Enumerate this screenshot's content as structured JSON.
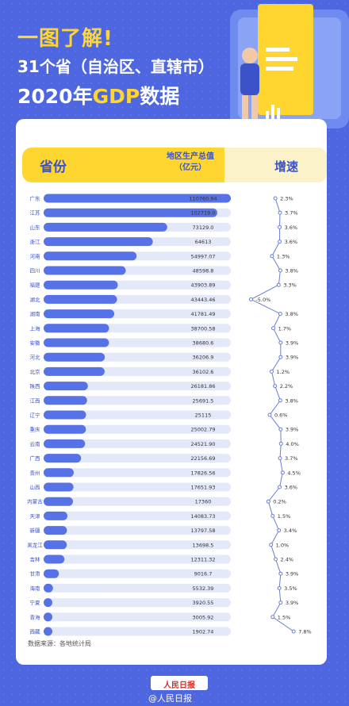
{
  "headline": {
    "line1": "一图了解!",
    "line2": "31个省（自治区、直辖市）",
    "line3_year": "2020年",
    "line3_gdp": "GDP",
    "line3_tail": "数据"
  },
  "table_header": {
    "province": "省份",
    "gdp": "地区生产总值",
    "gdp_unit": "（亿元）",
    "growth": "增速"
  },
  "source_note": "数据来源：各地统计局",
  "footer": {
    "logo": "人民日报",
    "weibo": "@人民日报"
  },
  "colors": {
    "background": "#4e67e0",
    "bar": "#5771e6",
    "track": "#e4e9fa",
    "line": "#6b7fd3",
    "accent": "#ffd530"
  },
  "chart_data": {
    "type": "bar",
    "categories": [
      "广东",
      "江苏",
      "山东",
      "浙江",
      "河南",
      "四川",
      "福建",
      "湖北",
      "湖南",
      "上海",
      "安徽",
      "河北",
      "北京",
      "陕西",
      "江西",
      "辽宁",
      "重庆",
      "云南",
      "广西",
      "贵州",
      "山西",
      "内蒙古",
      "天津",
      "新疆",
      "黑龙江",
      "吉林",
      "甘肃",
      "海南",
      "宁夏",
      "青海",
      "西藏"
    ],
    "values": [
      110760.94,
      102719.0,
      73129.0,
      64613,
      54997.07,
      48598.8,
      43903.89,
      43443.46,
      41781.49,
      38700.58,
      38680.6,
      36206.9,
      36102.6,
      26181.86,
      25691.5,
      25115,
      25002.79,
      24521.9,
      22156.69,
      17826.56,
      17651.93,
      17360,
      14083.73,
      13797.58,
      13698.5,
      12311.32,
      9016.7,
      5532.39,
      3920.55,
      3005.92,
      1902.74
    ],
    "value_labels": [
      "110760.94",
      "102719.0",
      "73129.0",
      "64613",
      "54997.07",
      "48598.8",
      "43903.89",
      "43443.46",
      "41781.49",
      "38700.58",
      "38680.6",
      "36206.9",
      "36102.6",
      "26181.86",
      "25691.5",
      "25115",
      "25002.79",
      "24521.90",
      "22156.69",
      "17826.56",
      "17651.93",
      "17360",
      "14083.73",
      "13797.58",
      "13698.5",
      "12311.32",
      "9016.7",
      "5532.39",
      "3920.55",
      "3005.92",
      "1902.74"
    ],
    "growth": [
      2.3,
      3.7,
      3.6,
      3.6,
      1.3,
      3.8,
      3.3,
      -5.0,
      3.8,
      1.7,
      3.9,
      3.9,
      1.2,
      2.2,
      3.8,
      0.6,
      3.9,
      4.0,
      3.7,
      4.5,
      3.6,
      0.2,
      1.5,
      3.4,
      1.0,
      2.4,
      3.9,
      3.5,
      3.9,
      1.5,
      7.8
    ],
    "growth_labels": [
      "2.3%",
      "3.7%",
      "3.6%",
      "3.6%",
      "1.3%",
      "3.8%",
      "3.3%",
      "-5.0%",
      "3.8%",
      "1.7%",
      "3.9%",
      "3.9%",
      "1.2%",
      "2.2%",
      "3.8%",
      "0.6%",
      "3.9%",
      "4.0%",
      "3.7%",
      "4.5%",
      "3.6%",
      "0.2%",
      "1.5%",
      "3.4%",
      "1.0%",
      "2.4%",
      "3.9%",
      "3.5%",
      "3.9%",
      "1.5%",
      "7.8%"
    ],
    "xlim": [
      0,
      110760.94
    ]
  }
}
